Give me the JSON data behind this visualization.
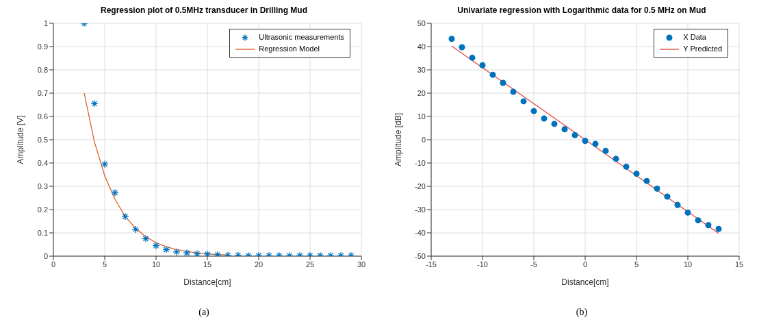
{
  "chart_data": [
    {
      "type": "scatter",
      "title": "Regression plot of 0.5MHz transducer in Drilling Mud",
      "xlabel": "Distance[cm]",
      "ylabel": "Amplitude [V]",
      "xlim": [
        0,
        30
      ],
      "xticks": [
        0,
        5,
        10,
        15,
        20,
        25,
        30
      ],
      "ylim": [
        0,
        1
      ],
      "yticks": [
        0,
        0.1,
        0.2,
        0.3,
        0.4,
        0.5,
        0.6,
        0.7,
        0.8,
        0.9,
        1
      ],
      "grid": true,
      "legend": "top right",
      "annotations": [
        "(a)"
      ],
      "series": [
        {
          "name": "Ultrasonic measurements",
          "marker": "cross",
          "color": "#0072bd",
          "x": [
            3,
            4,
            5,
            6,
            7,
            8,
            9,
            10,
            11,
            12,
            13,
            14,
            15,
            16,
            17,
            18,
            19,
            20,
            21,
            22,
            23,
            24,
            25,
            26,
            27,
            28,
            29
          ],
          "values": [
            1,
            0.655,
            0.395,
            0.272,
            0.17,
            0.115,
            0.075,
            0.045,
            0.028,
            0.018,
            0.014,
            0.01,
            0.009,
            0.006,
            0.004,
            0.004,
            0.002,
            0.002,
            0.002,
            0.002,
            0.002,
            0.002,
            0.002,
            0.002,
            0.002,
            0.002,
            0.002
          ]
        },
        {
          "name": "Regression Model",
          "type": "line",
          "marker": "none",
          "line_style": "solid",
          "color": "#d95319",
          "x": [
            3,
            4,
            5,
            6,
            7,
            8,
            9,
            10,
            11,
            12,
            13,
            14,
            15,
            16,
            17
          ],
          "values": [
            0.7,
            0.49,
            0.345,
            0.245,
            0.17,
            0.12,
            0.083,
            0.058,
            0.04,
            0.028,
            0.02,
            0.014,
            0.01,
            0.007,
            0.005
          ]
        }
      ]
    },
    {
      "type": "scatter",
      "title": "Univariate regression with Logarithmic data for 0.5 MHz on Mud",
      "xlabel": "Distance[cm]",
      "ylabel": "Amplitude [dB]",
      "xlim": [
        -15,
        15
      ],
      "xticks": [
        -15,
        -10,
        -5,
        0,
        5,
        10,
        15
      ],
      "ylim": [
        -50,
        50
      ],
      "yticks": [
        -50,
        -40,
        -30,
        -20,
        -10,
        0,
        10,
        20,
        30,
        40,
        50
      ],
      "grid": true,
      "legend": "top right",
      "annotations": [
        "(b)"
      ],
      "series": [
        {
          "name": "X Data",
          "marker": "circle",
          "color": "#0072bd",
          "x": [
            -13,
            -12,
            -11,
            -10,
            -9,
            -8,
            -7,
            -6,
            -5,
            -4,
            -3,
            -2,
            -1,
            0,
            1,
            2,
            3,
            4,
            5,
            6,
            7,
            8,
            9,
            10,
            11,
            12,
            13
          ],
          "values": [
            43.3,
            39.7,
            35.2,
            32,
            27.9,
            24.4,
            20.6,
            16.5,
            12.3,
            9.1,
            6.8,
            4.5,
            2,
            -0.5,
            -1.8,
            -4.8,
            -8.2,
            -11.6,
            -14.6,
            -17.7,
            -21,
            -24.4,
            -28,
            -31.3,
            -34.6,
            -36.7,
            -38.3
          ]
        },
        {
          "name": "Y Predicted",
          "type": "line",
          "marker": "none",
          "line_style": "solid",
          "color": "#e0403a",
          "x": [
            -13,
            13
          ],
          "values": [
            40.2,
            -40.2
          ]
        }
      ]
    }
  ]
}
